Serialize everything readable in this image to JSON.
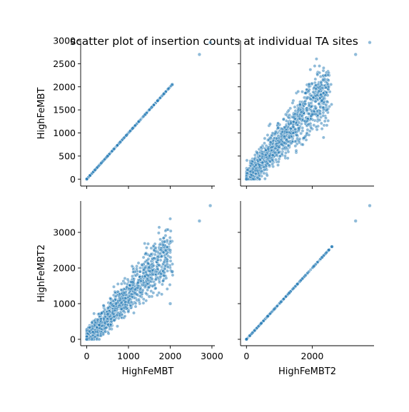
{
  "title": "scatter plot of insertion counts at individual TA sites",
  "style": {
    "point_color": "#1f77b4",
    "point_opacity": 0.5
  },
  "chart_data": [
    {
      "type": "scatter",
      "panel": "HighFeMBT vs HighFeMBT",
      "xlabel": "",
      "ylabel": "HighFeMBT",
      "xlim": [
        -146,
        3070
      ],
      "ylim": [
        -150,
        3000
      ],
      "xticks": [],
      "yticks": [
        0,
        500,
        1000,
        1500,
        2000,
        2500,
        3000
      ],
      "pattern": "identity",
      "x": [
        0,
        80,
        200,
        350,
        500,
        650,
        800,
        950,
        1100,
        1250,
        1400,
        1550,
        1700,
        1850,
        1950,
        2050,
        2700,
        2960
      ],
      "y": [
        0,
        80,
        200,
        350,
        500,
        650,
        800,
        950,
        1100,
        1250,
        1400,
        1550,
        1700,
        1850,
        1950,
        2050,
        2700,
        2960
      ]
    },
    {
      "type": "scatter",
      "panel": "HighFeMBT2 vs HighFeMBT",
      "xlabel": "",
      "ylabel": "",
      "xlim": [
        -180,
        3880
      ],
      "ylim": [
        -150,
        3000
      ],
      "xticks": [],
      "yticks": [],
      "pattern": "correlated",
      "x": [
        0,
        200,
        400,
        700,
        1000,
        1300,
        1600,
        2000,
        2300,
        2500,
        1900,
        1200,
        2450,
        3320,
        3750
      ],
      "y": [
        0,
        150,
        300,
        500,
        700,
        900,
        1100,
        1400,
        1700,
        2000,
        2050,
        1400,
        1500,
        2700,
        2960
      ]
    },
    {
      "type": "scatter",
      "panel": "HighFeMBT vs HighFeMBT2",
      "xlabel": "HighFeMBT",
      "ylabel": "HighFeMBT2",
      "xlim": [
        -146,
        3070
      ],
      "ylim": [
        -180,
        3880
      ],
      "xticks": [
        0,
        1000,
        2000,
        3000
      ],
      "yticks": [
        0,
        1000,
        2000,
        3000
      ],
      "pattern": "correlated",
      "x": [
        0,
        150,
        300,
        500,
        700,
        900,
        1100,
        1400,
        1700,
        2000,
        2050,
        1500,
        2000,
        2700,
        2960
      ],
      "y": [
        0,
        200,
        400,
        700,
        1000,
        1300,
        1600,
        2000,
        2300,
        2500,
        1900,
        1200,
        1000,
        3320,
        3750
      ]
    },
    {
      "type": "scatter",
      "panel": "HighFeMBT2 vs HighFeMBT2",
      "xlabel": "HighFeMBT2",
      "ylabel": "",
      "xlim": [
        -180,
        3880
      ],
      "ylim": [
        -180,
        3880
      ],
      "xticks": [
        0,
        2000
      ],
      "yticks": [],
      "pattern": "identity",
      "x": [
        0,
        100,
        250,
        450,
        650,
        850,
        1050,
        1300,
        1550,
        1800,
        2050,
        2300,
        2500,
        2600,
        3320,
        3750
      ],
      "y": [
        0,
        100,
        250,
        450,
        650,
        850,
        1050,
        1300,
        1550,
        1800,
        2050,
        2300,
        2500,
        2600,
        3320,
        3750
      ]
    }
  ]
}
